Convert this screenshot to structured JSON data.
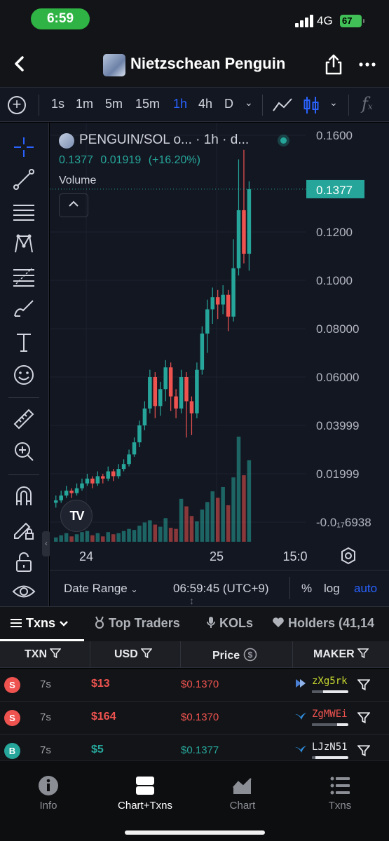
{
  "status_bar": {
    "time": "6:59",
    "network": "4G",
    "battery": "67"
  },
  "header": {
    "token_name": "Nietzschean Penguin"
  },
  "timeframes": [
    {
      "label": "1s",
      "active": false
    },
    {
      "label": "1m",
      "active": false
    },
    {
      "label": "5m",
      "active": false
    },
    {
      "label": "15m",
      "active": false
    },
    {
      "label": "1h",
      "active": true
    },
    {
      "label": "4h",
      "active": false
    },
    {
      "label": "D",
      "active": false
    }
  ],
  "chart": {
    "pair_title": "PENGUIN/SOL o... · 1h · d...",
    "last_price": "0.1377",
    "change_abs": "0.01919",
    "change_pct": "(+16.20%)",
    "volume_label": "Volume",
    "price_tag": "0.1377",
    "date_range_label": "Date Range",
    "clock": "06:59:45 (UTC+9)",
    "percent_label": "%",
    "log_label": "log",
    "auto_label": "auto",
    "colors": {
      "up": "#26a69a",
      "down": "#ef5350",
      "accent": "#2962ff"
    }
  },
  "chart_data": {
    "type": "candlestick",
    "interval": "1h",
    "y_tick_labels": [
      "0.1600",
      "0.1200",
      "0.1000",
      "0.08000",
      "0.06000",
      "0.03999",
      "0.01999",
      "-0.0₁₇6938"
    ],
    "x_tick_labels": [
      "24",
      "25",
      "15:0"
    ],
    "last_value": 0.1377,
    "candles": [
      [
        0.008,
        0.009,
        0.006,
        0.011
      ],
      [
        0.009,
        0.011,
        0.008,
        0.013
      ],
      [
        0.011,
        0.013,
        0.01,
        0.015
      ],
      [
        0.013,
        0.012,
        0.01,
        0.014
      ],
      [
        0.012,
        0.014,
        0.011,
        0.016
      ],
      [
        0.014,
        0.016,
        0.013,
        0.018
      ],
      [
        0.016,
        0.018,
        0.015,
        0.02
      ],
      [
        0.018,
        0.016,
        0.014,
        0.019
      ],
      [
        0.016,
        0.019,
        0.015,
        0.021
      ],
      [
        0.019,
        0.018,
        0.016,
        0.02
      ],
      [
        0.018,
        0.021,
        0.017,
        0.023
      ],
      [
        0.021,
        0.019,
        0.017,
        0.022
      ],
      [
        0.019,
        0.022,
        0.018,
        0.024
      ],
      [
        0.022,
        0.024,
        0.021,
        0.026
      ],
      [
        0.024,
        0.028,
        0.023,
        0.03
      ],
      [
        0.028,
        0.033,
        0.027,
        0.035
      ],
      [
        0.033,
        0.04,
        0.031,
        0.042
      ],
      [
        0.04,
        0.047,
        0.038,
        0.05
      ],
      [
        0.047,
        0.06,
        0.045,
        0.063
      ],
      [
        0.06,
        0.048,
        0.043,
        0.062
      ],
      [
        0.048,
        0.055,
        0.044,
        0.058
      ],
      [
        0.055,
        0.064,
        0.05,
        0.067
      ],
      [
        0.064,
        0.052,
        0.046,
        0.066
      ],
      [
        0.052,
        0.047,
        0.043,
        0.055
      ],
      [
        0.047,
        0.06,
        0.045,
        0.063
      ],
      [
        0.06,
        0.05,
        0.035,
        0.062
      ],
      [
        0.05,
        0.045,
        0.036,
        0.052
      ],
      [
        0.045,
        0.063,
        0.043,
        0.066
      ],
      [
        0.063,
        0.078,
        0.061,
        0.081
      ],
      [
        0.078,
        0.088,
        0.07,
        0.092
      ],
      [
        0.088,
        0.093,
        0.082,
        0.097
      ],
      [
        0.093,
        0.09,
        0.084,
        0.096
      ],
      [
        0.09,
        0.094,
        0.086,
        0.098
      ],
      [
        0.094,
        0.085,
        0.079,
        0.096
      ],
      [
        0.085,
        0.105,
        0.083,
        0.117
      ],
      [
        0.105,
        0.129,
        0.102,
        0.15
      ],
      [
        0.129,
        0.111,
        0.107,
        0.154
      ],
      [
        0.111,
        0.1377,
        0.104,
        0.141
      ]
    ],
    "volume_relative": [
      4,
      6,
      8,
      5,
      7,
      9,
      10,
      6,
      8,
      5,
      9,
      7,
      8,
      10,
      12,
      11,
      15,
      18,
      20,
      16,
      14,
      22,
      13,
      12,
      40,
      33,
      24,
      19,
      30,
      37,
      47,
      41,
      51,
      34,
      60,
      98,
      62,
      76
    ]
  },
  "tools": [
    "crosshair-icon",
    "trend-line-icon",
    "horizontal-lines-icon",
    "pattern-icon",
    "fib-icon",
    "brush-icon",
    "text-icon",
    "emoji-icon",
    "ruler-icon",
    "zoom-icon",
    "magnet-icon",
    "lock-pencil-icon",
    "unlock-icon",
    "eye-icon"
  ],
  "txn_tabs": [
    {
      "label": "Txns",
      "active": true
    },
    {
      "label": "Top Traders",
      "active": false
    },
    {
      "label": "KOLs",
      "active": false
    },
    {
      "label": "Holders (41,14",
      "active": false
    }
  ],
  "table": {
    "headers": {
      "txn": "TXN",
      "usd": "USD",
      "price": "Price",
      "maker": "MAKER"
    },
    "rows": [
      {
        "side": "S",
        "age": "7s",
        "usd": "$13",
        "price": "$0.1370",
        "maker": "zXg5rk",
        "bar": 0.3,
        "maker_color": "#c7d82f"
      },
      {
        "side": "S",
        "age": "7s",
        "usd": "$164",
        "price": "$0.1370",
        "maker": "ZgMWEi",
        "bar": 0.7,
        "maker_color": "#ef5350"
      },
      {
        "side": "B",
        "age": "7s",
        "usd": "$5",
        "price": "$0.1377",
        "maker": "LJzN51",
        "bar": 0.1,
        "maker_color": "#e8e9ec"
      }
    ]
  },
  "nav": [
    {
      "label": "Info",
      "icon": "info-icon",
      "active": false
    },
    {
      "label": "Chart+Txns",
      "icon": "chart-txns-icon",
      "active": true
    },
    {
      "label": "Chart",
      "icon": "chart-icon",
      "active": false
    },
    {
      "label": "Txns",
      "icon": "txns-list-icon",
      "active": false
    }
  ]
}
